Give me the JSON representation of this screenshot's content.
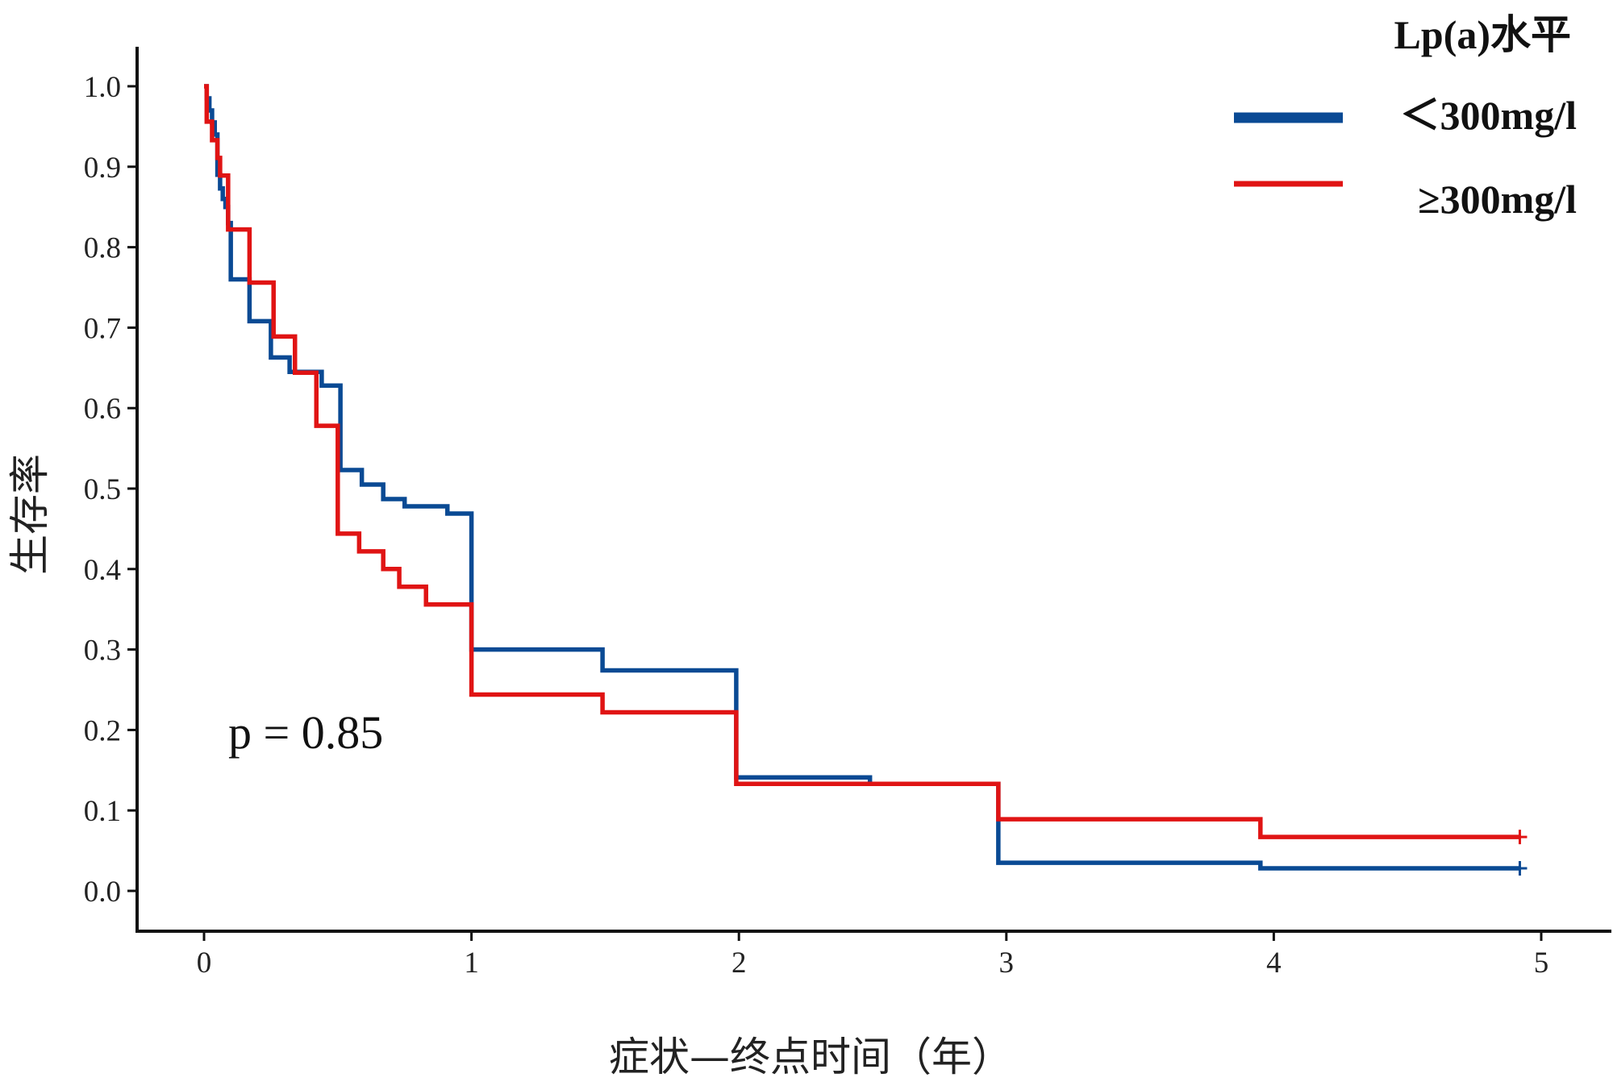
{
  "chart_data": {
    "type": "line",
    "subtype": "kaplan-meier step",
    "xlabel": "症状—终点时间（年）",
    "ylabel": "生存率",
    "xlim": [
      -0.25,
      5.25
    ],
    "ylim": [
      -0.05,
      1.05
    ],
    "x_ticks": [
      "0",
      "1",
      "2",
      "3",
      "4",
      "5"
    ],
    "y_ticks": [
      "0.0",
      "0.1",
      "0.2",
      "0.3",
      "0.4",
      "0.5",
      "0.6",
      "0.7",
      "0.8",
      "0.9",
      "1.0"
    ],
    "grid": false,
    "legend_title": "Lp(a)水平",
    "legend_position": "top-right",
    "annotation": "p = 0.85",
    "series": [
      {
        "name": "＜300mg/l",
        "color": "#0a4a94",
        "censored_at": [
          [
            4.92,
            0.028
          ]
        ],
        "steps": [
          [
            0.0,
            1.0
          ],
          [
            0.01,
            0.985
          ],
          [
            0.02,
            0.97
          ],
          [
            0.03,
            0.955
          ],
          [
            0.04,
            0.94
          ],
          [
            0.05,
            0.89
          ],
          [
            0.06,
            0.873
          ],
          [
            0.07,
            0.86
          ],
          [
            0.08,
            0.85
          ],
          [
            0.09,
            0.83
          ],
          [
            0.1,
            0.76
          ],
          [
            0.16,
            0.76
          ],
          [
            0.17,
            0.708
          ],
          [
            0.24,
            0.708
          ],
          [
            0.25,
            0.663
          ],
          [
            0.31,
            0.663
          ],
          [
            0.32,
            0.645
          ],
          [
            0.43,
            0.645
          ],
          [
            0.44,
            0.628
          ],
          [
            0.5,
            0.628
          ],
          [
            0.51,
            0.523
          ],
          [
            0.58,
            0.523
          ],
          [
            0.59,
            0.505
          ],
          [
            0.66,
            0.505
          ],
          [
            0.67,
            0.487
          ],
          [
            0.74,
            0.487
          ],
          [
            0.75,
            0.478
          ],
          [
            0.9,
            0.478
          ],
          [
            0.91,
            0.469
          ],
          [
            0.99,
            0.469
          ],
          [
            1.0,
            0.3
          ],
          [
            1.48,
            0.3
          ],
          [
            1.49,
            0.274
          ],
          [
            1.98,
            0.274
          ],
          [
            1.99,
            0.141
          ],
          [
            2.48,
            0.141
          ],
          [
            2.49,
            0.133
          ],
          [
            2.96,
            0.133
          ],
          [
            2.97,
            0.035
          ],
          [
            3.94,
            0.035
          ],
          [
            3.95,
            0.028
          ],
          [
            4.92,
            0.028
          ]
        ]
      },
      {
        "name": "≥300mg/l",
        "color": "#e01414",
        "censored_at": [
          [
            4.92,
            0.067
          ]
        ],
        "steps": [
          [
            0.0,
            1.0
          ],
          [
            0.01,
            0.956
          ],
          [
            0.02,
            0.956
          ],
          [
            0.03,
            0.933
          ],
          [
            0.04,
            0.933
          ],
          [
            0.05,
            0.911
          ],
          [
            0.06,
            0.889
          ],
          [
            0.08,
            0.889
          ],
          [
            0.09,
            0.822
          ],
          [
            0.16,
            0.822
          ],
          [
            0.17,
            0.756
          ],
          [
            0.25,
            0.756
          ],
          [
            0.26,
            0.689
          ],
          [
            0.33,
            0.689
          ],
          [
            0.34,
            0.644
          ],
          [
            0.41,
            0.644
          ],
          [
            0.42,
            0.578
          ],
          [
            0.49,
            0.578
          ],
          [
            0.5,
            0.444
          ],
          [
            0.57,
            0.444
          ],
          [
            0.58,
            0.422
          ],
          [
            0.66,
            0.422
          ],
          [
            0.67,
            0.4
          ],
          [
            0.72,
            0.4
          ],
          [
            0.73,
            0.378
          ],
          [
            0.82,
            0.378
          ],
          [
            0.83,
            0.356
          ],
          [
            0.99,
            0.356
          ],
          [
            1.0,
            0.244
          ],
          [
            1.48,
            0.244
          ],
          [
            1.49,
            0.222
          ],
          [
            1.98,
            0.222
          ],
          [
            1.99,
            0.133
          ],
          [
            2.96,
            0.133
          ],
          [
            2.97,
            0.089
          ],
          [
            3.94,
            0.089
          ],
          [
            3.95,
            0.067
          ],
          [
            4.92,
            0.067
          ]
        ]
      }
    ]
  }
}
